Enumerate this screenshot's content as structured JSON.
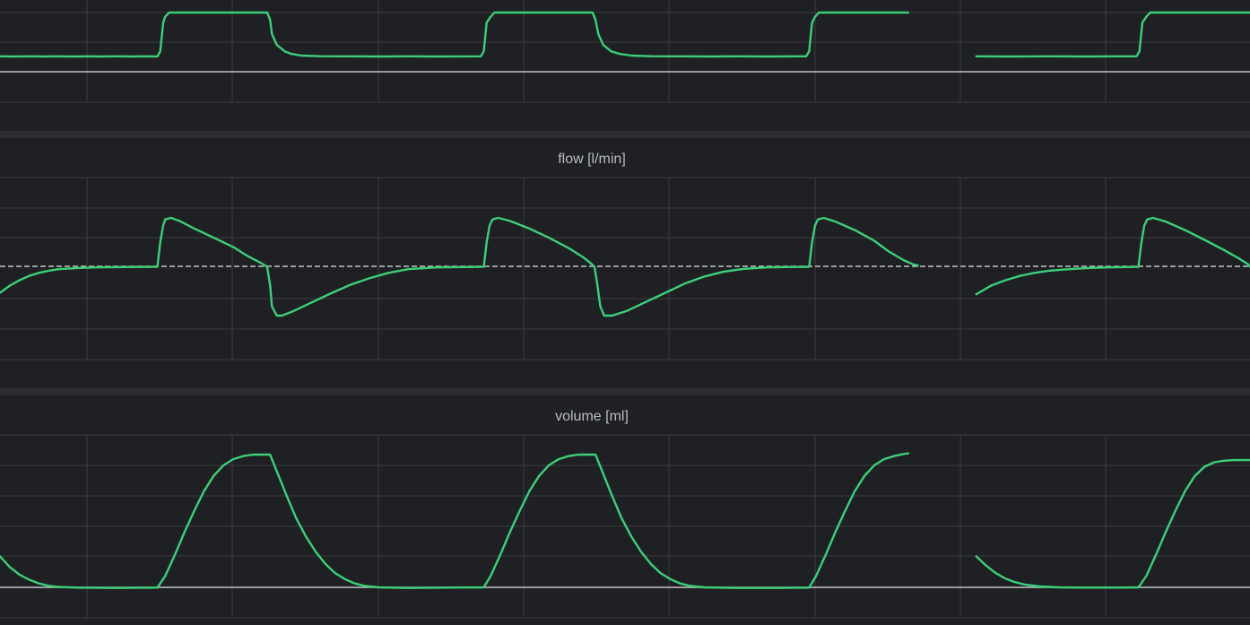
{
  "colors": {
    "background": "#1f2023",
    "panel_separator": "#2b2d30",
    "grid": "#3a3c40",
    "baseline": "#c4c4c4",
    "trace": "#3ccf7a"
  },
  "chart_data": [
    {
      "type": "line",
      "title": "",
      "xlabel": "",
      "ylabel": "",
      "grid": true,
      "cropped_top": true,
      "x_unit_note": "",
      "series": [
        {
          "points": [
            [
              0,
              0.25
            ],
            [
              0.15,
              0.24
            ],
            [
              0.3,
              0.25
            ],
            [
              0.45,
              0.24
            ],
            [
              0.6,
              0.25
            ],
            [
              0.75,
              0.24
            ],
            [
              0.9,
              0.25
            ],
            [
              1.05,
              0.24
            ],
            [
              1.2,
              0.25
            ],
            [
              1.35,
              0.24
            ],
            [
              1.5,
              0.25
            ],
            [
              1.62,
              0.24
            ],
            [
              1.65,
              0.6
            ],
            [
              1.68,
              2.6
            ],
            [
              1.7,
              3.0
            ],
            [
              1.74,
              3.3
            ],
            [
              2.5,
              3.3
            ],
            [
              2.75,
              3.3
            ],
            [
              2.78,
              2.8
            ],
            [
              2.8,
              1.8
            ],
            [
              2.85,
              1.05
            ],
            [
              2.93,
              0.6
            ],
            [
              3.0,
              0.42
            ],
            [
              3.1,
              0.3
            ],
            [
              3.3,
              0.26
            ],
            [
              3.6,
              0.25
            ],
            [
              3.9,
              0.24
            ],
            [
              4.2,
              0.25
            ],
            [
              4.5,
              0.24
            ],
            [
              4.95,
              0.25
            ],
            [
              4.98,
              0.6
            ],
            [
              5.01,
              2.6
            ],
            [
              5.05,
              3.0
            ],
            [
              5.09,
              3.3
            ],
            [
              6.0,
              3.3
            ],
            [
              6.1,
              3.3
            ],
            [
              6.13,
              2.8
            ],
            [
              6.16,
              1.8
            ],
            [
              6.21,
              1.05
            ],
            [
              6.29,
              0.6
            ],
            [
              6.38,
              0.42
            ],
            [
              6.5,
              0.3
            ],
            [
              6.7,
              0.26
            ],
            [
              7.0,
              0.25
            ],
            [
              7.3,
              0.24
            ],
            [
              7.6,
              0.25
            ],
            [
              7.9,
              0.24
            ],
            [
              8.3,
              0.25
            ],
            [
              8.33,
              0.6
            ],
            [
              8.36,
              2.6
            ],
            [
              8.39,
              3.0
            ],
            [
              8.43,
              3.3
            ],
            [
              9.35,
              3.3
            ]
          ]
        },
        {
          "points": [
            [
              10.05,
              0.25
            ],
            [
              10.4,
              0.24
            ],
            [
              10.8,
              0.25
            ],
            [
              11.2,
              0.24
            ],
            [
              11.5,
              0.25
            ],
            [
              11.7,
              0.25
            ],
            [
              11.73,
              0.6
            ],
            [
              11.76,
              2.6
            ],
            [
              11.8,
              3.0
            ],
            [
              11.84,
              3.3
            ],
            [
              12.9,
              3.3
            ]
          ]
        }
      ]
    },
    {
      "type": "line",
      "title": "flow [l/min]",
      "xlabel": "",
      "ylabel": "",
      "grid": true,
      "series": [
        {
          "points": [
            [
              0,
              -0.85
            ],
            [
              0.1,
              -0.62
            ],
            [
              0.2,
              -0.44
            ],
            [
              0.3,
              -0.3
            ],
            [
              0.4,
              -0.2
            ],
            [
              0.5,
              -0.13
            ],
            [
              0.6,
              -0.08
            ],
            [
              0.8,
              -0.04
            ],
            [
              1.0,
              -0.02
            ],
            [
              1.3,
              -0.01
            ],
            [
              1.62,
              0
            ],
            [
              1.65,
              0.8
            ],
            [
              1.68,
              1.35
            ],
            [
              1.7,
              1.55
            ],
            [
              1.76,
              1.6
            ],
            [
              1.85,
              1.5
            ],
            [
              2.0,
              1.25
            ],
            [
              2.2,
              0.95
            ],
            [
              2.4,
              0.65
            ],
            [
              2.55,
              0.35
            ],
            [
              2.7,
              0.1
            ],
            [
              2.75,
              0
            ],
            [
              2.78,
              -0.6
            ],
            [
              2.8,
              -1.3
            ],
            [
              2.85,
              -1.6
            ],
            [
              2.9,
              -1.6
            ],
            [
              3.0,
              -1.48
            ],
            [
              3.2,
              -1.18
            ],
            [
              3.4,
              -0.88
            ],
            [
              3.6,
              -0.6
            ],
            [
              3.8,
              -0.38
            ],
            [
              4.0,
              -0.2
            ],
            [
              4.2,
              -0.08
            ],
            [
              4.5,
              -0.02
            ],
            [
              4.8,
              -0.01
            ],
            [
              4.98,
              0
            ],
            [
              5.01,
              0.8
            ],
            [
              5.04,
              1.35
            ],
            [
              5.07,
              1.55
            ],
            [
              5.13,
              1.6
            ],
            [
              5.25,
              1.5
            ],
            [
              5.45,
              1.25
            ],
            [
              5.65,
              0.95
            ],
            [
              5.85,
              0.62
            ],
            [
              6.0,
              0.32
            ],
            [
              6.08,
              0.12
            ],
            [
              6.12,
              0
            ],
            [
              6.15,
              -0.6
            ],
            [
              6.18,
              -1.3
            ],
            [
              6.22,
              -1.6
            ],
            [
              6.3,
              -1.6
            ],
            [
              6.45,
              -1.45
            ],
            [
              6.65,
              -1.15
            ],
            [
              6.85,
              -0.85
            ],
            [
              7.05,
              -0.55
            ],
            [
              7.25,
              -0.32
            ],
            [
              7.45,
              -0.16
            ],
            [
              7.65,
              -0.07
            ],
            [
              7.9,
              -0.02
            ],
            [
              8.1,
              -0.01
            ],
            [
              8.33,
              0
            ],
            [
              8.36,
              0.8
            ],
            [
              8.39,
              1.35
            ],
            [
              8.42,
              1.55
            ],
            [
              8.48,
              1.6
            ],
            [
              8.6,
              1.48
            ],
            [
              8.8,
              1.2
            ],
            [
              9.0,
              0.85
            ],
            [
              9.15,
              0.5
            ],
            [
              9.3,
              0.22
            ],
            [
              9.4,
              0.08
            ],
            [
              9.45,
              0.04
            ]
          ]
        },
        {
          "points": [
            [
              10.05,
              -0.9
            ],
            [
              10.2,
              -0.62
            ],
            [
              10.35,
              -0.44
            ],
            [
              10.5,
              -0.3
            ],
            [
              10.65,
              -0.2
            ],
            [
              10.8,
              -0.13
            ],
            [
              11.0,
              -0.08
            ],
            [
              11.2,
              -0.04
            ],
            [
              11.4,
              -0.02
            ],
            [
              11.6,
              -0.01
            ],
            [
              11.72,
              0
            ],
            [
              11.75,
              0.8
            ],
            [
              11.78,
              1.35
            ],
            [
              11.81,
              1.55
            ],
            [
              11.87,
              1.6
            ],
            [
              12.0,
              1.48
            ],
            [
              12.2,
              1.2
            ],
            [
              12.4,
              0.88
            ],
            [
              12.6,
              0.55
            ],
            [
              12.75,
              0.28
            ],
            [
              12.85,
              0.08
            ],
            [
              12.9,
              0
            ]
          ]
        }
      ]
    },
    {
      "type": "line",
      "title": "volume [ml]",
      "xlabel": "",
      "ylabel": "",
      "grid": true,
      "series": [
        {
          "points": [
            [
              0,
              1.05
            ],
            [
              0.1,
              0.7
            ],
            [
              0.2,
              0.45
            ],
            [
              0.3,
              0.28
            ],
            [
              0.4,
              0.16
            ],
            [
              0.5,
              0.08
            ],
            [
              0.6,
              0.04
            ],
            [
              0.8,
              0.02
            ],
            [
              1.2,
              0.01
            ],
            [
              1.62,
              0.02
            ],
            [
              1.7,
              0.4
            ],
            [
              1.8,
              1.1
            ],
            [
              1.9,
              1.85
            ],
            [
              2.0,
              2.55
            ],
            [
              2.1,
              3.2
            ],
            [
              2.2,
              3.7
            ],
            [
              2.3,
              4.05
            ],
            [
              2.4,
              4.25
            ],
            [
              2.5,
              4.35
            ],
            [
              2.6,
              4.4
            ],
            [
              2.78,
              4.4
            ],
            [
              2.85,
              3.85
            ],
            [
              2.95,
              3.05
            ],
            [
              3.05,
              2.3
            ],
            [
              3.15,
              1.7
            ],
            [
              3.25,
              1.2
            ],
            [
              3.35,
              0.8
            ],
            [
              3.45,
              0.5
            ],
            [
              3.55,
              0.3
            ],
            [
              3.65,
              0.16
            ],
            [
              3.75,
              0.08
            ],
            [
              3.9,
              0.03
            ],
            [
              4.2,
              0.01
            ],
            [
              4.6,
              0.02
            ],
            [
              4.98,
              0.03
            ],
            [
              5.05,
              0.4
            ],
            [
              5.15,
              1.1
            ],
            [
              5.25,
              1.85
            ],
            [
              5.35,
              2.55
            ],
            [
              5.45,
              3.2
            ],
            [
              5.55,
              3.7
            ],
            [
              5.65,
              4.05
            ],
            [
              5.75,
              4.25
            ],
            [
              5.85,
              4.35
            ],
            [
              5.95,
              4.4
            ],
            [
              6.13,
              4.4
            ],
            [
              6.2,
              3.85
            ],
            [
              6.3,
              3.05
            ],
            [
              6.4,
              2.3
            ],
            [
              6.5,
              1.7
            ],
            [
              6.6,
              1.2
            ],
            [
              6.7,
              0.8
            ],
            [
              6.8,
              0.5
            ],
            [
              6.9,
              0.3
            ],
            [
              7.0,
              0.16
            ],
            [
              7.1,
              0.08
            ],
            [
              7.25,
              0.03
            ],
            [
              7.6,
              0.01
            ],
            [
              8.0,
              0.01
            ],
            [
              8.33,
              0.02
            ],
            [
              8.4,
              0.4
            ],
            [
              8.5,
              1.1
            ],
            [
              8.6,
              1.85
            ],
            [
              8.7,
              2.55
            ],
            [
              8.8,
              3.2
            ],
            [
              8.9,
              3.7
            ],
            [
              9.0,
              4.05
            ],
            [
              9.1,
              4.25
            ],
            [
              9.2,
              4.35
            ],
            [
              9.3,
              4.42
            ],
            [
              9.35,
              4.44
            ]
          ]
        },
        {
          "points": [
            [
              10.05,
              1.05
            ],
            [
              10.15,
              0.75
            ],
            [
              10.25,
              0.5
            ],
            [
              10.35,
              0.32
            ],
            [
              10.45,
              0.2
            ],
            [
              10.55,
              0.12
            ],
            [
              10.7,
              0.06
            ],
            [
              10.9,
              0.03
            ],
            [
              11.2,
              0.02
            ],
            [
              11.5,
              0.02
            ],
            [
              11.72,
              0.03
            ],
            [
              11.8,
              0.4
            ],
            [
              11.9,
              1.1
            ],
            [
              12.0,
              1.85
            ],
            [
              12.1,
              2.55
            ],
            [
              12.2,
              3.2
            ],
            [
              12.3,
              3.7
            ],
            [
              12.4,
              4.0
            ],
            [
              12.5,
              4.15
            ],
            [
              12.6,
              4.2
            ],
            [
              12.7,
              4.22
            ],
            [
              12.9,
              4.22
            ]
          ]
        }
      ]
    }
  ]
}
